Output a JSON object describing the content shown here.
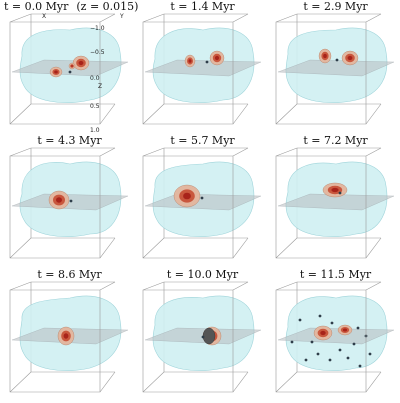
{
  "panels": [
    {
      "time": "t = 0.0 Myr",
      "subtitle": "(z = 0.015)"
    },
    {
      "time": "t = 1.4 Myr"
    },
    {
      "time": "t = 2.9 Myr"
    },
    {
      "time": "t = 4.3 Myr"
    },
    {
      "time": "t = 5.7 Myr"
    },
    {
      "time": "t = 7.2 Myr"
    },
    {
      "time": "t = 8.6 Myr"
    },
    {
      "time": "t = 10.0 Myr"
    },
    {
      "time": "t = 11.5 Myr"
    }
  ],
  "axes": {
    "x_label": "X",
    "y_label": "Y",
    "z_label": "Z",
    "z_ticks": [
      "−1.0",
      "−0.5",
      "0.0",
      "0.5",
      "1.0"
    ]
  },
  "colors": {
    "cloud_fill": "#cfeff2",
    "cloud_stroke": "#9fd4da",
    "plane": "#b7bcc0",
    "box": "#9a9a9a",
    "clump_outer": "#e2b7a0",
    "clump_mid": "#c9573d",
    "clump_core": "#a8231a",
    "star": "#2f3e4a"
  }
}
